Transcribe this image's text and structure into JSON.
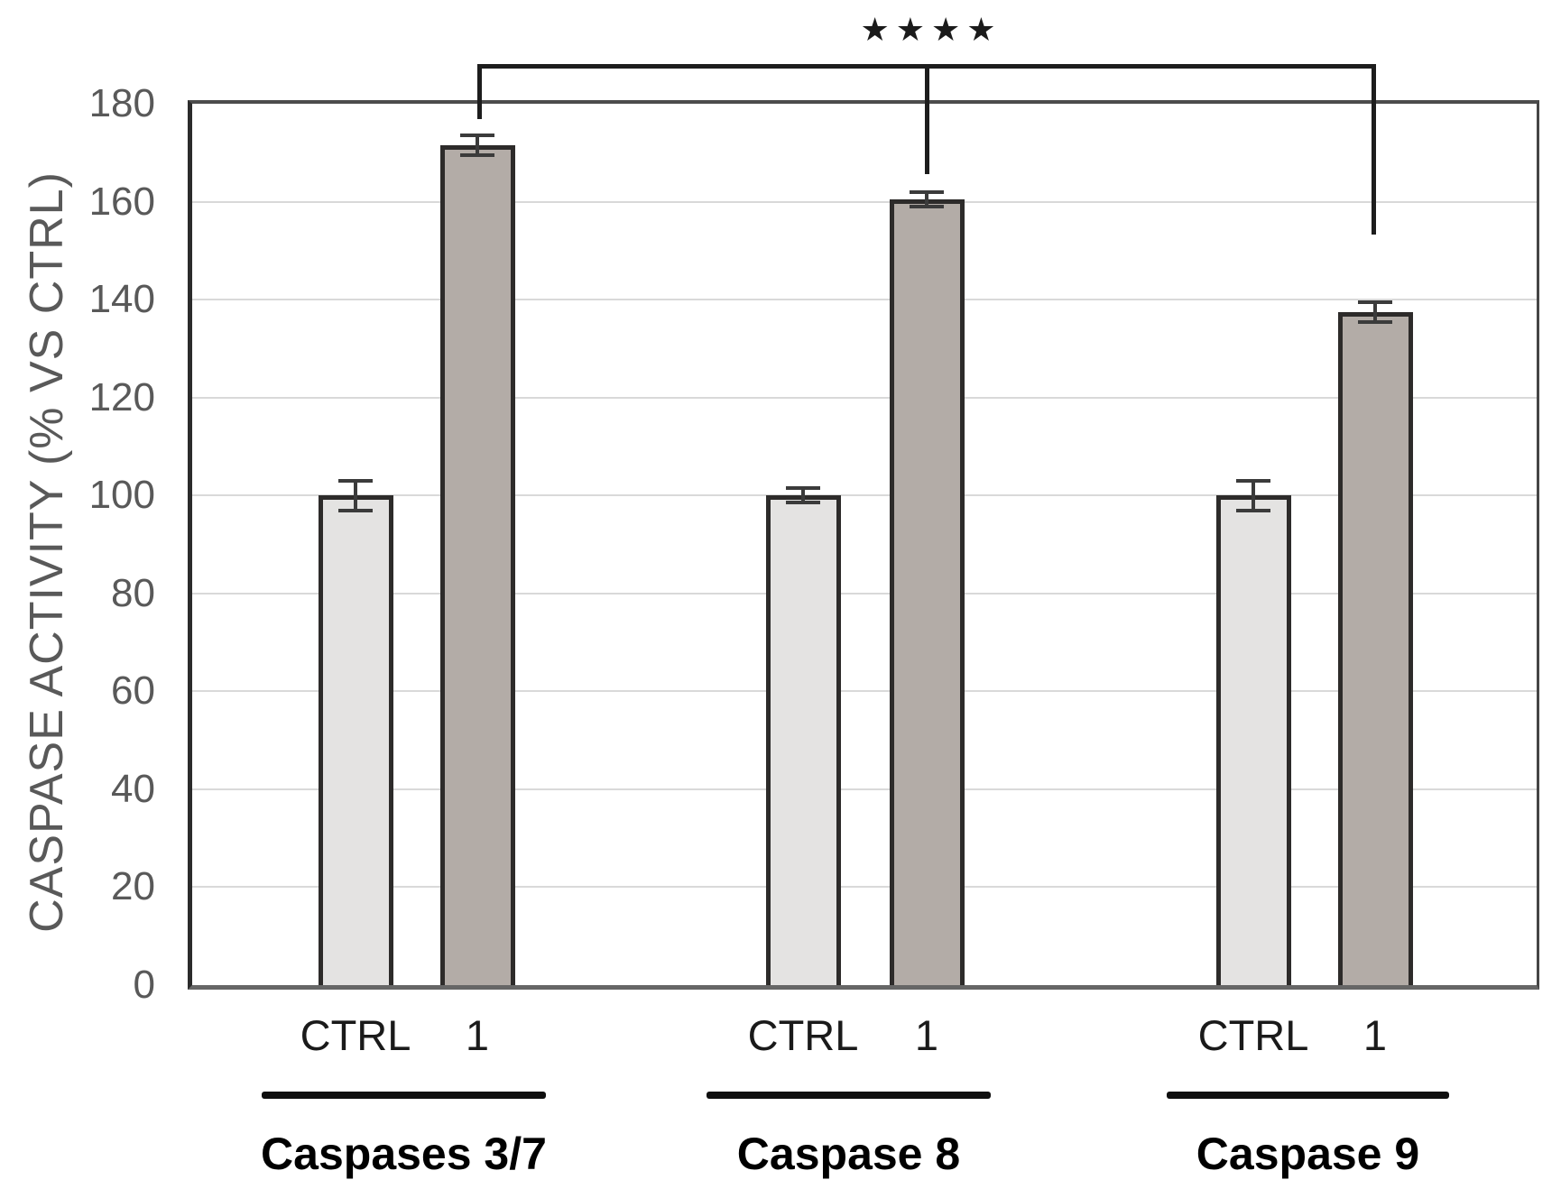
{
  "colors": {
    "ctrl_bar_fill": "#e4e3e2",
    "compound_bar_fill": "#b3aca7",
    "bar_border": "#2d2b2a",
    "gridline": "#d9d9d9",
    "tick_text": "#595959",
    "label_text": "#1a1a1a",
    "significance_text": "#1b1b1b"
  },
  "significance": {
    "stars": "★★★★",
    "ascii": "****"
  },
  "chart_data": {
    "type": "bar",
    "title": "",
    "xlabel": "",
    "ylabel": "CASPASE ACTIVITY (% VS CTRL)",
    "ylim": [
      0,
      180
    ],
    "yticks": [
      0,
      20,
      40,
      60,
      80,
      100,
      120,
      140,
      160,
      180
    ],
    "grid": "horizontal",
    "legend": "none",
    "error_bars": true,
    "categories": [
      "Caspases 3/7",
      "Caspase 8",
      "Caspase 9"
    ],
    "bar_labels": [
      "CTRL",
      "1"
    ],
    "series": [
      {
        "name": "CTRL",
        "values": [
          100,
          100,
          100
        ],
        "errors": [
          3,
          1.5,
          3
        ]
      },
      {
        "name": "1",
        "values": [
          171.5,
          160.5,
          137.5
        ],
        "errors": [
          2,
          1.5,
          2
        ]
      }
    ],
    "significance_annotation": {
      "text": "****",
      "bracket_over_bars": [
        "Caspases 3/7 : 1",
        "Caspase 8 : 1",
        "Caspase 9 : 1"
      ]
    }
  }
}
